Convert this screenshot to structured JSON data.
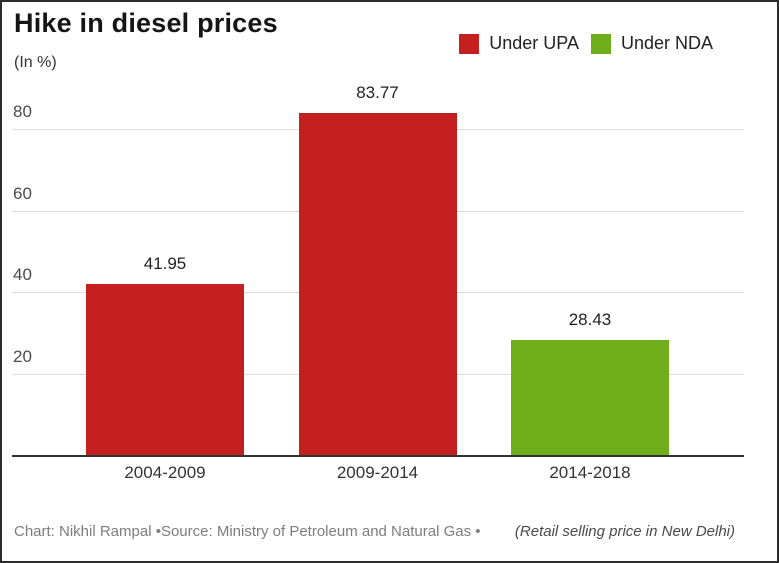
{
  "chart": {
    "title": "Hike in diesel prices",
    "subtitle": "(In %)",
    "footer_left": "Chart: Nikhil Rampal •Source: Ministry of Petroleum and Natural Gas •",
    "footer_right": "(Retail selling price in New Delhi)"
  },
  "colors": {
    "upa_red": "#c4201f",
    "nda_green": "#70ad1b",
    "gridline": "#dddddd",
    "axis": "#333333"
  },
  "chart_data": {
    "type": "bar",
    "title": "Hike in diesel prices",
    "subtitle": "(In %)",
    "ylabel": "(In %)",
    "xlabel": "",
    "categories": [
      "2004-2009",
      "2009-2014",
      "2014-2018"
    ],
    "values": [
      41.95,
      83.77,
      28.43
    ],
    "value_labels": [
      "41.95",
      "83.77",
      "28.43"
    ],
    "series_by_bar": [
      "Under UPA",
      "Under UPA",
      "Under NDA"
    ],
    "legend": [
      {
        "label": "Under UPA",
        "color": "#c4201f"
      },
      {
        "label": "Under NDA",
        "color": "#70ad1b"
      }
    ],
    "legend_position": "top-right",
    "yticks": [
      20,
      40,
      60,
      80
    ],
    "ylim": [
      0,
      87
    ],
    "grid": true,
    "note": "(Retail selling price in New Delhi)",
    "credit": "Chart: Nikhil Rampal •Source: Ministry of Petroleum and Natural Gas •"
  }
}
